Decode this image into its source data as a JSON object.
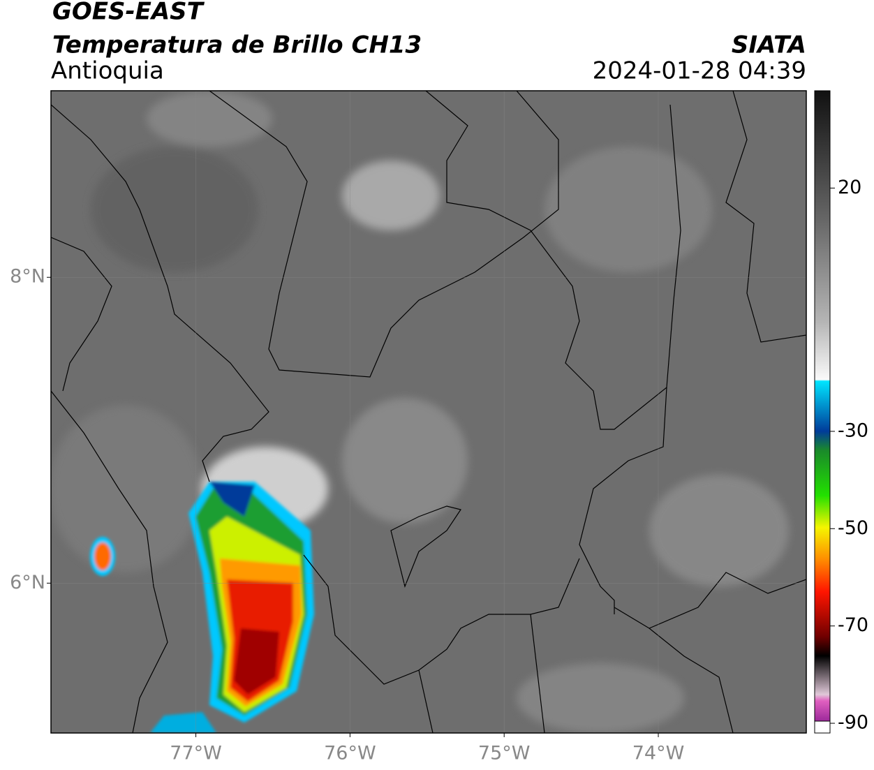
{
  "header": {
    "title": "GOES-EAST",
    "subtitle": "Temperatura de Brillo CH13",
    "region": "Antioquia",
    "source": "SIATA",
    "datetime": "2024-01-28 04:39"
  },
  "map": {
    "xlim": [
      -77.94,
      -73.04
    ],
    "ylim": [
      5.02,
      9.22
    ],
    "xticks": [
      {
        "value": -77,
        "label": "77°W"
      },
      {
        "value": -76,
        "label": "76°W"
      },
      {
        "value": -75,
        "label": "75°W"
      },
      {
        "value": -74,
        "label": "74°W"
      }
    ],
    "yticks": [
      {
        "value": 8,
        "label": "8°N"
      },
      {
        "value": 6,
        "label": "6°N"
      }
    ]
  },
  "colorbar": {
    "lim": [
      -92,
      40
    ],
    "ticks": [
      20,
      -30,
      -50,
      -70,
      -90
    ]
  }
}
